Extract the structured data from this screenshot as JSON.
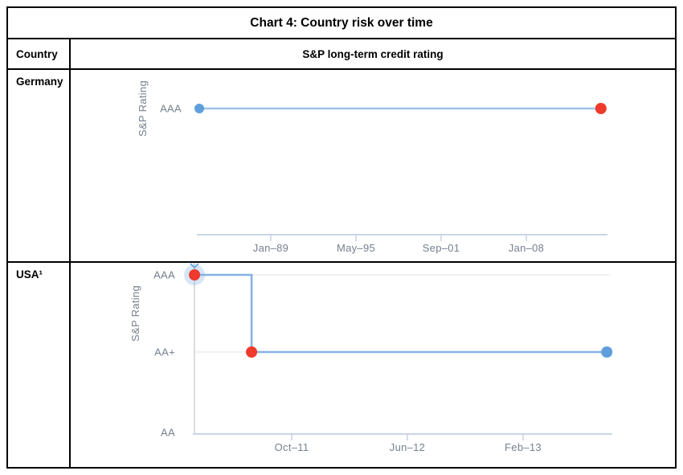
{
  "table": {
    "title": "Chart 4: Country risk over time",
    "header": {
      "country": "Country",
      "rating": "S&P long-term credit rating"
    },
    "rows": [
      {
        "country": "Germany"
      },
      {
        "country": "USA¹"
      }
    ]
  },
  "colors": {
    "axis": "#c9d5e6",
    "tick_text": "#76808e",
    "gridline": "#e9eaec",
    "crosshair": "#d6d6d6",
    "marker_blue": "#5f9edc",
    "marker_red": "#ee3a2b",
    "halo": "rgba(141,184,232,0.35)",
    "line_germany": "#9dc3ea",
    "line_usa": "#85b2e6",
    "border": "#000000"
  },
  "chart_data": [
    {
      "type": "line",
      "country": "Germany",
      "title": "S&P long-term credit rating",
      "ylabel": "S&P Rating",
      "yticks": [
        "AAA"
      ],
      "xticks": [
        "Jan–89",
        "May–95",
        "Sep–01",
        "Jan–08"
      ],
      "line_shape": "linear",
      "line_color": "#9dc3ea",
      "grid": false,
      "legend": "none",
      "series": [
        {
          "name": "S&P long-term credit rating",
          "points": [
            {
              "x_frac": 0.006,
              "y": "AAA",
              "marker_color": "#5f9edc",
              "r": 6
            },
            {
              "x_frac": 0.984,
              "y": "AAA",
              "marker_color": "#ee3a2b",
              "r": 7
            }
          ]
        }
      ],
      "annotation": "rating constant at AAA over whole period"
    },
    {
      "type": "line",
      "country": "USA",
      "title": "S&P long-term credit rating",
      "ylabel": "S&P Rating",
      "yticks": [
        "AAA",
        "AA+",
        "AA"
      ],
      "xticks": [
        "Oct–11",
        "Jun–12",
        "Feb–13"
      ],
      "line_shape": "step-after",
      "line_color": "#85b2e6",
      "grid": true,
      "legend": "none",
      "series": [
        {
          "name": "S&P long-term credit rating",
          "points": [
            {
              "x_frac": 0.004,
              "y": "AAA",
              "marker_color": "#ee3a2b",
              "r": 7,
              "halo": true
            },
            {
              "x_frac": 0.14,
              "y": "AA+",
              "marker_color": "#ee3a2b",
              "r": 7
            },
            {
              "x_frac": 0.987,
              "y": "AA+",
              "marker_color": "#5f9edc",
              "r": 7
            }
          ]
        }
      ],
      "annotation": "downgrade from AAA to AA+ before Oct-11, then constant"
    }
  ]
}
